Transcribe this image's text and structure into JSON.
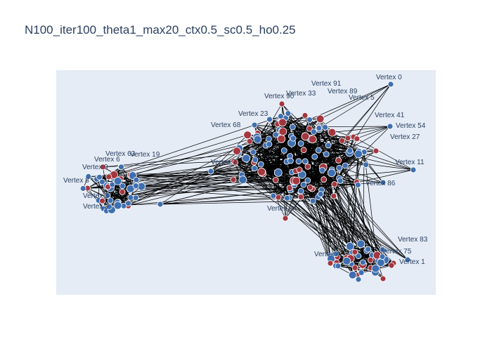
{
  "title": "N100_iter100_theta1_max20_ctx0.5_sc0.5_ho0.25",
  "colors": {
    "plot_background": "#e5ecf6",
    "edge": "#000000",
    "node_blue": "#3e6fb0",
    "node_red": "#a3363f",
    "node_outline": "#ffffff",
    "label": "#2a3f5f"
  },
  "labels": [
    "Vertex 0",
    "Vertex 91",
    "Vertex 33",
    "Vertex 89",
    "Vertex 5",
    "Vertex 90",
    "Vertex 23",
    "Vertex 41",
    "Vertex 54",
    "Vertex 27",
    "Vertex 68",
    "Vertex 11",
    "Vertex 63",
    "Vertex 19",
    "Vertex 9",
    "Vertex 86",
    "Vertex 83",
    "Vertex 75",
    "Vertex 64",
    "Vertex 4",
    "Vertex 1",
    "Vertex 7",
    "Vertex 6",
    "Vertex 8",
    "Vertex 2",
    "Vertex 3"
  ]
}
